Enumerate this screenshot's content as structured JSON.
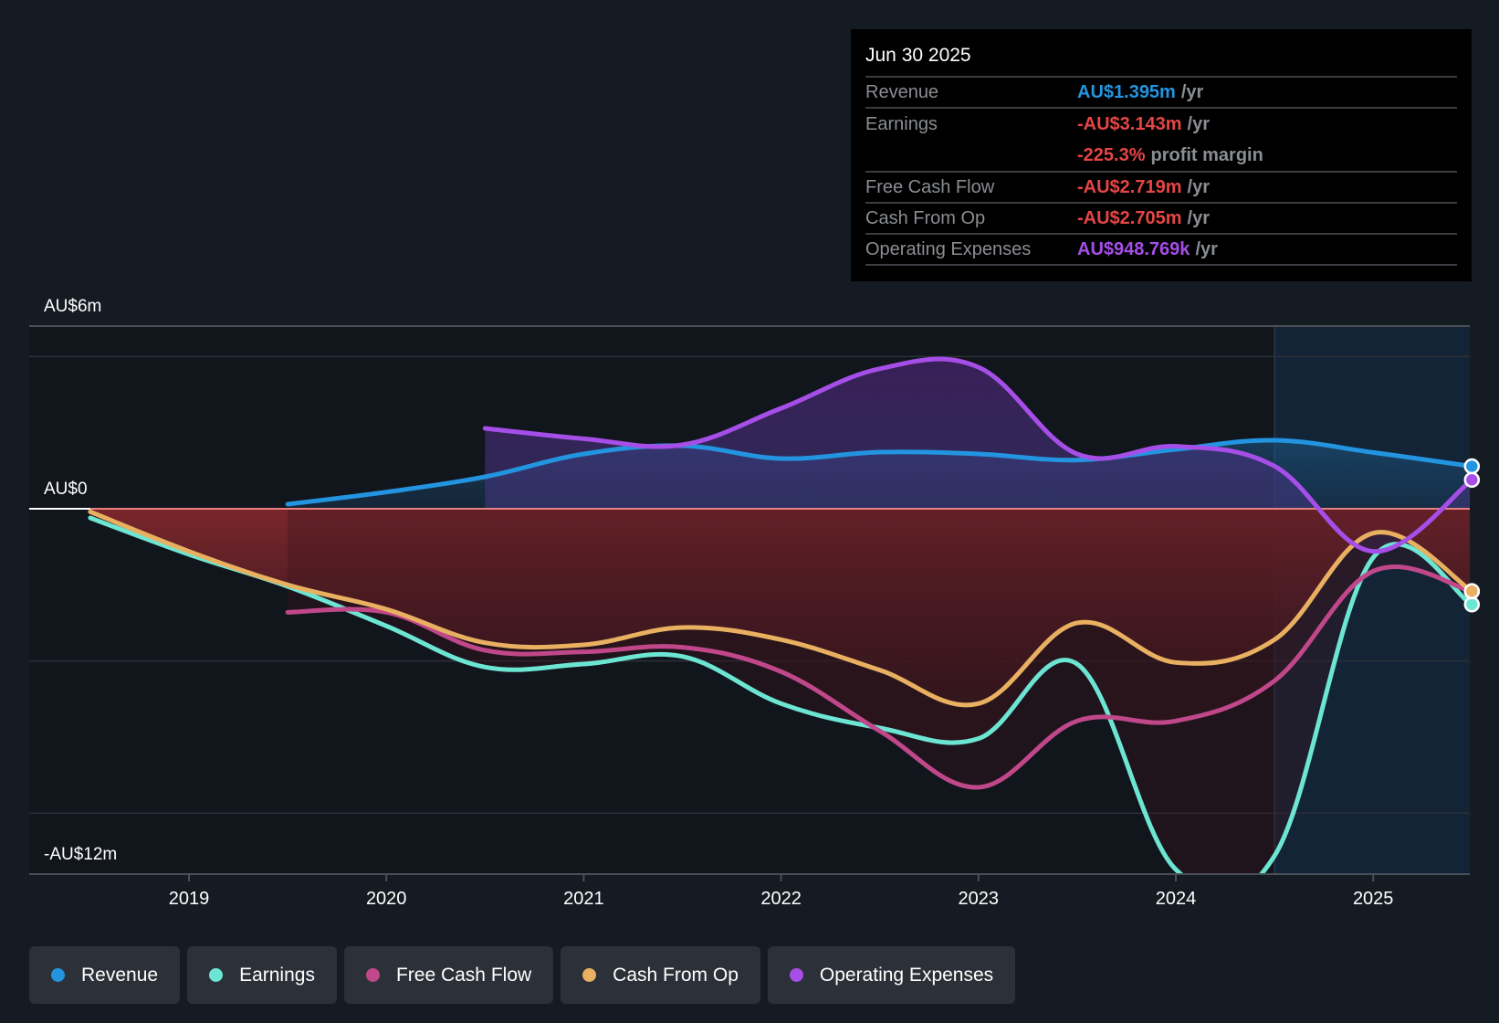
{
  "tooltip": {
    "date": "Jun 30 2025",
    "rows": [
      {
        "label": "Revenue",
        "value": "AU$1.395m",
        "unit": "/yr",
        "color": "#2394df"
      },
      {
        "label": "Earnings",
        "value": "-AU$3.143m",
        "unit": "/yr",
        "color": "#e64545",
        "extra_value": "-225.3%",
        "extra_unit": "profit margin"
      },
      {
        "label": "Free Cash Flow",
        "value": "-AU$2.719m",
        "unit": "/yr",
        "color": "#e64545"
      },
      {
        "label": "Cash From Op",
        "value": "-AU$2.705m",
        "unit": "/yr",
        "color": "#e64545"
      },
      {
        "label": "Operating Expenses",
        "value": "AU$948.769k",
        "unit": "/yr",
        "color": "#a64ee8"
      }
    ]
  },
  "legend": [
    {
      "label": "Revenue",
      "color": "#2394df"
    },
    {
      "label": "Earnings",
      "color": "#6ce5d3"
    },
    {
      "label": "Free Cash Flow",
      "color": "#c0488a"
    },
    {
      "label": "Cash From Op",
      "color": "#e8b060"
    },
    {
      "label": "Operating Expenses",
      "color": "#a64ee8"
    }
  ],
  "chart_data": {
    "type": "line",
    "title": "",
    "xlabel": "",
    "ylabel": "",
    "currency": "AU$",
    "y_tick_labels": [
      "AU$6m",
      "AU$0",
      "-AU$12m"
    ],
    "y_ticks": [
      6,
      0,
      -12
    ],
    "ylim": [
      -12,
      6
    ],
    "xlim": [
      2018.25,
      2025.5
    ],
    "x_ticks": [
      2019,
      2020,
      2021,
      2022,
      2023,
      2024,
      2025
    ],
    "x_tick_labels": [
      "2019",
      "2020",
      "2021",
      "2022",
      "2023",
      "2024",
      "2025"
    ],
    "gridlines_m": [
      5,
      -5,
      -10
    ],
    "forecast_region_start": 2024.5,
    "grid": true,
    "legend_position": "bottom-left",
    "series": [
      {
        "name": "Revenue",
        "color": "#2394df",
        "x": [
          2019.5,
          2020.0,
          2020.5,
          2021.0,
          2021.5,
          2022.0,
          2022.5,
          2023.0,
          2023.5,
          2024.0,
          2024.5,
          2025.0,
          2025.5
        ],
        "y": [
          0.15,
          0.55,
          1.05,
          1.8,
          2.07,
          1.65,
          1.86,
          1.8,
          1.6,
          1.95,
          2.25,
          1.85,
          1.395
        ]
      },
      {
        "name": "Earnings",
        "color": "#6ce5d3",
        "x": [
          2018.5,
          2019.0,
          2019.5,
          2020.0,
          2020.5,
          2021.0,
          2021.5,
          2022.0,
          2022.5,
          2023.0,
          2023.5,
          2024.0,
          2024.5,
          2025.0,
          2025.5
        ],
        "y": [
          -0.3,
          -1.5,
          -2.55,
          -3.85,
          -5.2,
          -5.1,
          -4.85,
          -6.4,
          -7.2,
          -7.55,
          -5.1,
          -11.85,
          -11.4,
          -1.6,
          -3.143
        ]
      },
      {
        "name": "Free Cash Flow",
        "color": "#c0488a",
        "x": [
          2019.5,
          2020.0,
          2020.5,
          2021.0,
          2021.5,
          2022.0,
          2022.5,
          2023.0,
          2023.5,
          2024.0,
          2024.5,
          2025.0,
          2025.5
        ],
        "y": [
          -3.4,
          -3.4,
          -4.65,
          -4.7,
          -4.55,
          -5.35,
          -7.3,
          -9.15,
          -6.97,
          -6.97,
          -5.65,
          -2.05,
          -2.719
        ]
      },
      {
        "name": "Cash From Op",
        "color": "#e8b060",
        "x": [
          2018.5,
          2019.0,
          2019.5,
          2020.0,
          2020.5,
          2021.0,
          2021.5,
          2022.0,
          2022.5,
          2023.0,
          2023.5,
          2024.0,
          2024.5,
          2025.0,
          2025.5
        ],
        "y": [
          -0.1,
          -1.4,
          -2.5,
          -3.3,
          -4.4,
          -4.47,
          -3.9,
          -4.3,
          -5.3,
          -6.4,
          -3.75,
          -5.05,
          -4.3,
          -0.8,
          -2.705
        ]
      },
      {
        "name": "Operating Expenses",
        "color": "#a64ee8",
        "x": [
          2020.5,
          2021.0,
          2021.5,
          2022.0,
          2022.5,
          2023.0,
          2023.5,
          2024.0,
          2024.5,
          2025.0,
          2025.5
        ],
        "y": [
          2.64,
          2.3,
          2.1,
          3.3,
          4.6,
          4.65,
          1.8,
          2.05,
          1.4,
          -1.4,
          0.949
        ]
      }
    ]
  }
}
